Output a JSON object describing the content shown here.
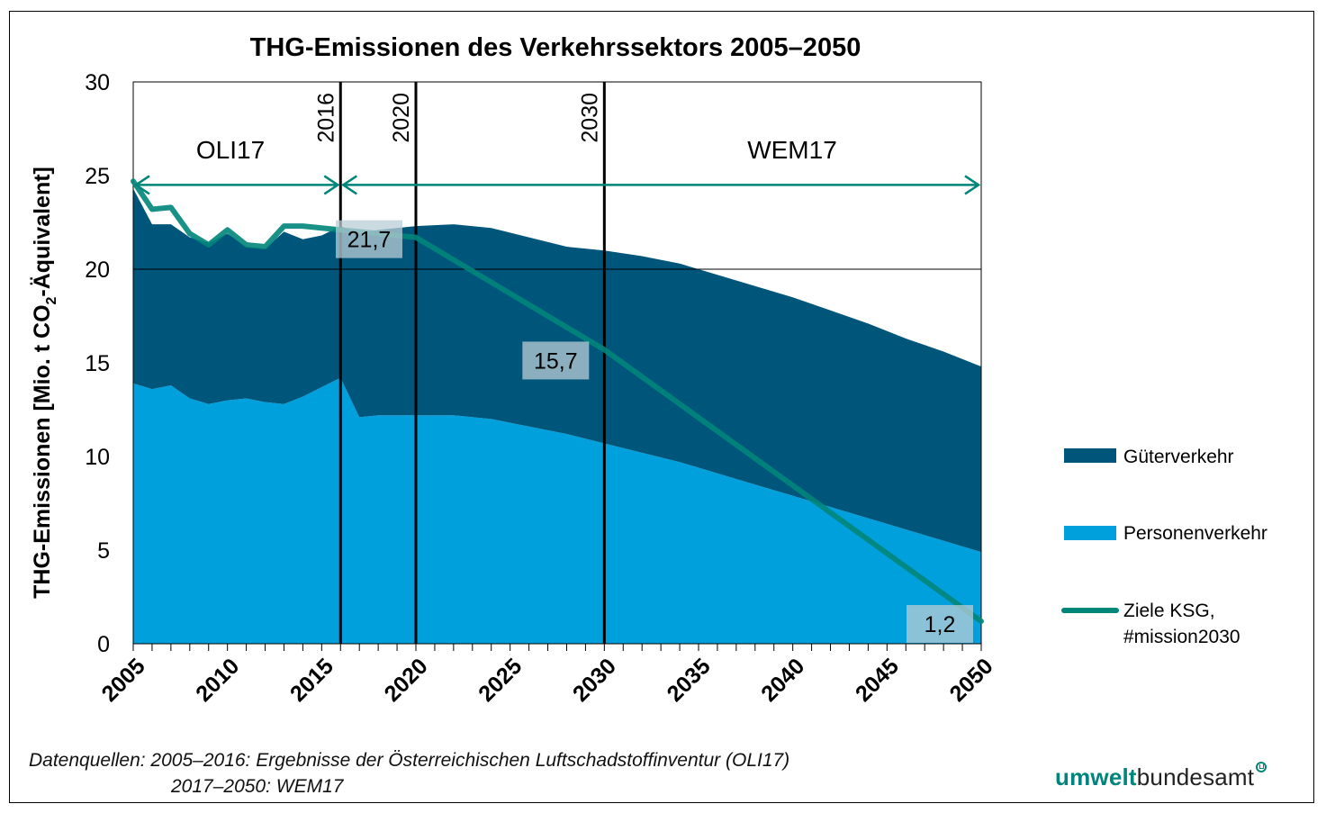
{
  "chart_data": {
    "type": "area",
    "title": "THG-Emissionen des Verkehrssektors 2005–2050",
    "ylabel_prefix": "THG-Emissionen [Mio. t CO",
    "ylabel_sub": "2",
    "ylabel_suffix": "-Äquivalent]",
    "xlim": [
      2005,
      2050
    ],
    "ylim": [
      0,
      30
    ],
    "y_ticks": [
      0,
      5,
      10,
      15,
      20,
      25,
      30
    ],
    "x_tick_labels": [
      2005,
      2010,
      2015,
      2020,
      2025,
      2030,
      2035,
      2040,
      2045,
      2050
    ],
    "grid": "horizontal at 20",
    "stacked": true,
    "x": [
      2005,
      2006,
      2007,
      2008,
      2009,
      2010,
      2011,
      2012,
      2013,
      2014,
      2015,
      2016,
      2017,
      2018,
      2019,
      2020,
      2022,
      2024,
      2026,
      2028,
      2030,
      2032,
      2034,
      2036,
      2038,
      2040,
      2042,
      2044,
      2046,
      2048,
      2050
    ],
    "series": [
      {
        "name": "Personenverkehr",
        "color": "#00a0dc",
        "values": [
          13.9,
          13.6,
          13.8,
          13.1,
          12.8,
          13.0,
          13.1,
          12.9,
          12.8,
          13.2,
          13.7,
          14.2,
          12.1,
          12.2,
          12.2,
          12.2,
          12.2,
          12.0,
          11.6,
          11.2,
          10.7,
          10.2,
          9.7,
          9.1,
          8.5,
          7.9,
          7.3,
          6.7,
          6.1,
          5.5,
          4.9
        ]
      },
      {
        "name": "Güterverkehr",
        "color": "#00557a",
        "values": [
          10.4,
          8.8,
          8.6,
          8.6,
          8.6,
          8.9,
          8.1,
          8.2,
          9.2,
          8.4,
          8.1,
          8.1,
          9.8,
          9.9,
          10.0,
          10.1,
          10.2,
          10.2,
          10.1,
          10.0,
          10.3,
          10.5,
          10.6,
          10.6,
          10.6,
          10.6,
          10.5,
          10.4,
          10.2,
          10.1,
          9.9
        ]
      }
    ],
    "target_line": {
      "name": "Ziele KSG,",
      "name_line2": "#mission2030",
      "color": "#00857a",
      "x": [
        2005,
        2006,
        2007,
        2008,
        2009,
        2010,
        2011,
        2012,
        2013,
        2014,
        2015,
        2016,
        2017,
        2018,
        2019,
        2020,
        2030,
        2050
      ],
      "values": [
        24.7,
        23.2,
        23.3,
        21.9,
        21.3,
        22.1,
        21.3,
        21.2,
        22.3,
        22.3,
        22.2,
        22.1,
        22.0,
        21.9,
        21.8,
        21.7,
        15.7,
        1.2
      ]
    },
    "data_labels": [
      {
        "x": 2020,
        "y": 21.7,
        "label": "21,7"
      },
      {
        "x": 2030,
        "y": 15.7,
        "label": "15,7"
      },
      {
        "x": 2050,
        "y": 1.2,
        "label": "1,2"
      }
    ],
    "vertical_markers": [
      {
        "x": 2016,
        "label": "2016"
      },
      {
        "x": 2020,
        "label": "2020"
      },
      {
        "x": 2030,
        "label": "2030"
      }
    ],
    "periods": [
      {
        "label": "OLI17",
        "from": 2005,
        "to": 2016
      },
      {
        "label": "WEM17",
        "from": 2016,
        "to": 2050
      }
    ],
    "legend_placement": "right",
    "legend": [
      "Güterverkehr",
      "Personenverkehr",
      "Ziele KSG, #mission2030"
    ]
  },
  "footer": {
    "source_line1": "Datenquellen: 2005–2016: Ergebnisse der Österreichischen Luftschadstoffinventur (OLI17)",
    "source_line2": "2017–2050: WEM17",
    "logo_part1": "umwelt",
    "logo_part2": "bundesamt"
  }
}
